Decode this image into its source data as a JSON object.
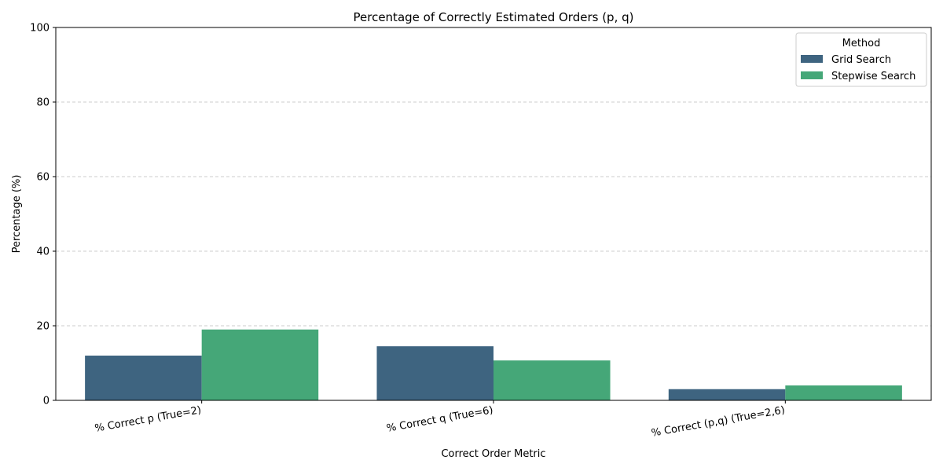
{
  "chart_data": {
    "type": "bar",
    "title": "Percentage of Correctly Estimated Orders (p, q)",
    "xlabel": "Correct Order Metric",
    "ylabel": "Percentage (%)",
    "ylim": [
      0,
      100
    ],
    "yticks": [
      0,
      20,
      40,
      60,
      80,
      100
    ],
    "grid": "y-dashed",
    "categories": [
      "% Correct p (True=2)",
      "% Correct q (True=6)",
      "% Correct (p,q) (True=2,6)"
    ],
    "series": [
      {
        "name": "Grid Search",
        "color": "#3e6480",
        "values": [
          12.0,
          14.5,
          3.0
        ]
      },
      {
        "name": "Stepwise Search",
        "color": "#45a778",
        "values": [
          19.0,
          10.7,
          4.0
        ]
      }
    ],
    "legend": {
      "title": "Method",
      "placement": "top-right"
    }
  }
}
